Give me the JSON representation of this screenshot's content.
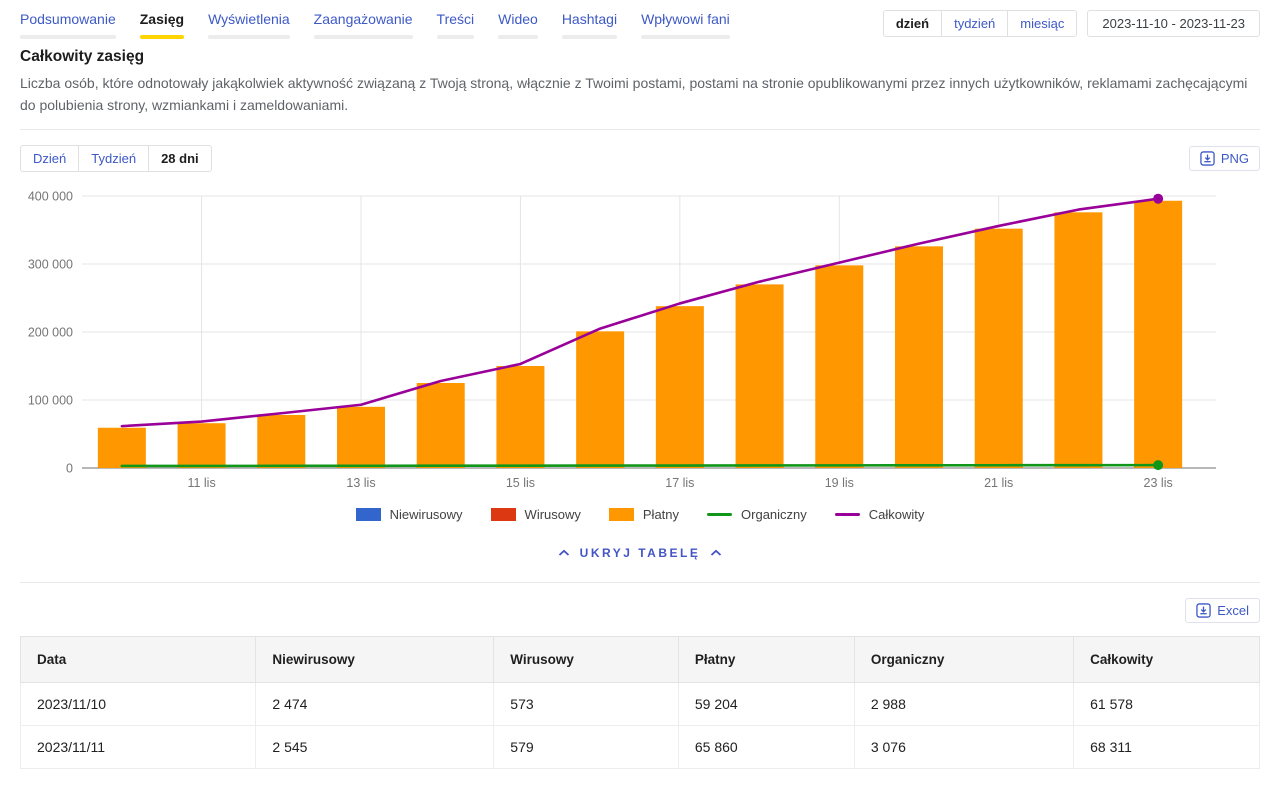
{
  "tabs": {
    "items": [
      {
        "label": "Podsumowanie",
        "active": false
      },
      {
        "label": "Zasięg",
        "active": true
      },
      {
        "label": "Wyświetlenia",
        "active": false
      },
      {
        "label": "Zaangażowanie",
        "active": false
      },
      {
        "label": "Treści",
        "active": false
      },
      {
        "label": "Wideo",
        "active": false
      },
      {
        "label": "Hashtagi",
        "active": false
      },
      {
        "label": "Wpływowi fani",
        "active": false
      }
    ],
    "active_underline_color": "#ffd400"
  },
  "period_selector": {
    "options": [
      {
        "label": "dzień",
        "active": true
      },
      {
        "label": "tydzień",
        "active": false
      },
      {
        "label": "miesiąc",
        "active": false
      }
    ]
  },
  "date_range": {
    "label": "2023-11-10 - 2023-11-23"
  },
  "section": {
    "title": "Całkowity zasięg",
    "description": "Liczba osób, które odnotowały jakąkolwiek aktywność związaną z Twoją stroną, włącznie z Twoimi postami, postami na stronie opublikowanymi przez innych użytkowników, reklamami zachęcającymi do polubienia strony, wzmiankami i zameldowaniami."
  },
  "chart_controls": {
    "options": [
      {
        "label": "Dzień",
        "active": false
      },
      {
        "label": "Tydzień",
        "active": false
      },
      {
        "label": "28 dni",
        "active": true
      }
    ],
    "png_label": "PNG"
  },
  "chart_data": {
    "type": "combo",
    "x": [
      "2023/11/10",
      "2023/11/11",
      "2023/11/12",
      "2023/11/13",
      "2023/11/14",
      "2023/11/15",
      "2023/11/16",
      "2023/11/17",
      "2023/11/18",
      "2023/11/19",
      "2023/11/20",
      "2023/11/21",
      "2023/11/22",
      "2023/11/23"
    ],
    "x_tick_labels": [
      "11 lis",
      "13 lis",
      "15 lis",
      "17 lis",
      "19 lis",
      "21 lis",
      "23 lis"
    ],
    "x_tick_indices": [
      1,
      3,
      5,
      7,
      9,
      11,
      13
    ],
    "ylim": [
      0,
      400000
    ],
    "y_ticks": [
      0,
      100000,
      200000,
      300000,
      400000
    ],
    "y_tick_labels": [
      "0",
      "100 000",
      "200 000",
      "300 000",
      "400 000"
    ],
    "grid": true,
    "legend_position": "bottom",
    "series": [
      {
        "name": "Niewirusowy",
        "type": "bar",
        "color": "#3366CC",
        "values": [
          2474,
          2545,
          2600,
          2650,
          2700,
          2750,
          2800,
          2850,
          2900,
          2950,
          3000,
          3050,
          3100,
          3150
        ]
      },
      {
        "name": "Wirusowy",
        "type": "bar",
        "color": "#DC3912",
        "values": [
          573,
          579,
          585,
          590,
          595,
          600,
          605,
          610,
          615,
          620,
          625,
          630,
          635,
          640
        ]
      },
      {
        "name": "Płatny",
        "type": "bar",
        "color": "#FF9800",
        "values": [
          59204,
          65860,
          78000,
          90000,
          125000,
          150000,
          201000,
          238000,
          270000,
          298000,
          326000,
          352000,
          376000,
          393000
        ]
      },
      {
        "name": "Organiczny",
        "type": "line",
        "color": "#109618",
        "end_marker": true,
        "values": [
          2988,
          3076,
          3150,
          3250,
          3350,
          3450,
          3550,
          3650,
          3750,
          3850,
          3950,
          4050,
          4150,
          4250
        ]
      },
      {
        "name": "Całkowity",
        "type": "line",
        "color": "#990099",
        "end_marker": true,
        "values": [
          61578,
          68311,
          80500,
          93000,
          128000,
          153000,
          205000,
          242000,
          274000,
          302000,
          330000,
          356000,
          380000,
          396000
        ]
      }
    ],
    "axis_colors": {
      "labels": "#757575",
      "grid": "#e4e4e4",
      "baseline": "#8d8d8d"
    }
  },
  "table_toggle": {
    "label": "UKRYJ TABELĘ"
  },
  "export": {
    "excel_label": "Excel"
  },
  "table": {
    "headers": [
      "Data",
      "Niewirusowy",
      "Wirusowy",
      "Płatny",
      "Organiczny",
      "Całkowity"
    ],
    "rows": [
      [
        "2023/11/10",
        "2 474",
        "573",
        "59 204",
        "2 988",
        "61 578"
      ],
      [
        "2023/11/11",
        "2 545",
        "579",
        "65 860",
        "3 076",
        "68 311"
      ]
    ]
  }
}
